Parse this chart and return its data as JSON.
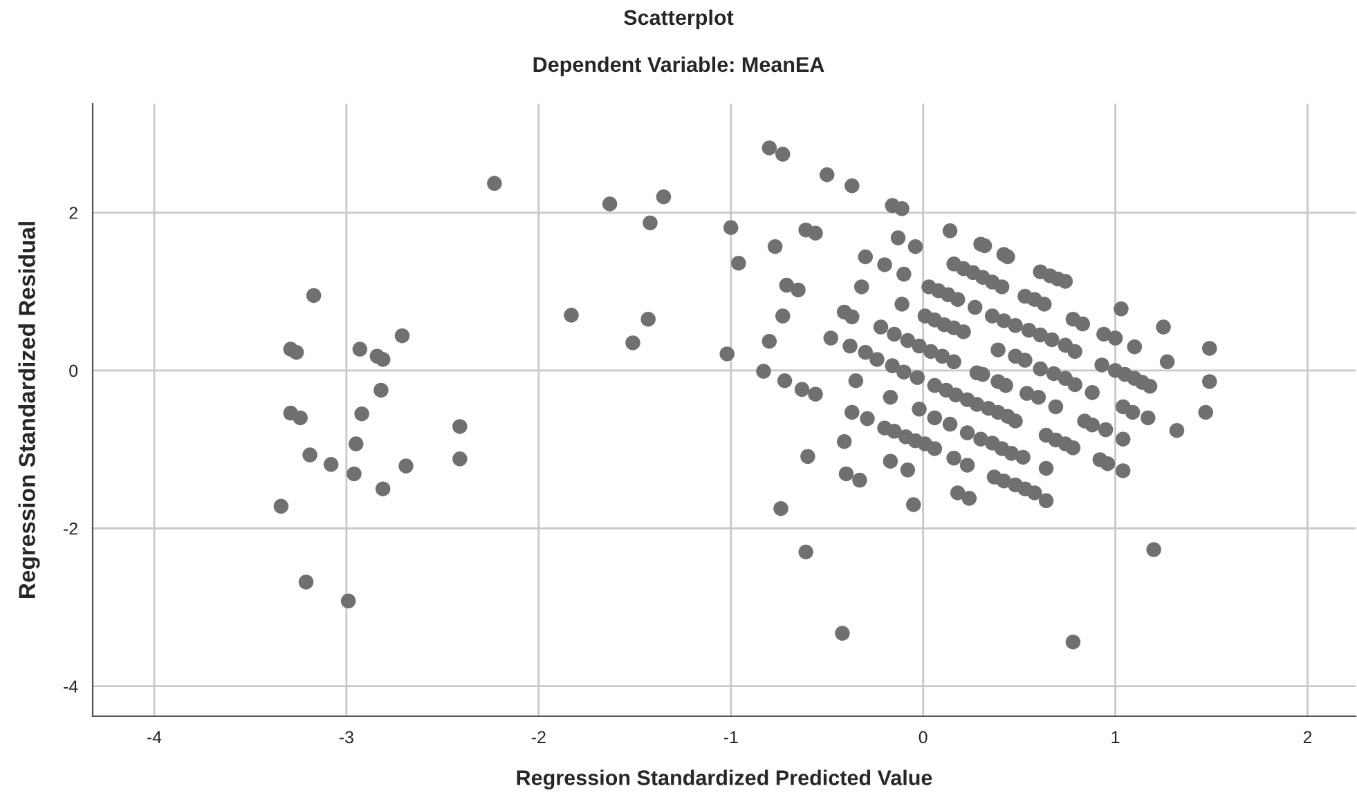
{
  "chart_data": {
    "type": "scatter",
    "title": "Scatterplot",
    "subtitle": "Dependent Variable: MeanEA",
    "xlabel": "Regression Standardized Predicted Value",
    "ylabel": "Regression Standardized Residual",
    "xlim": [
      -4.32,
      2.25
    ],
    "ylim": [
      -4.38,
      3.38
    ],
    "xticks": [
      -4,
      -3,
      -2,
      -1,
      0,
      1,
      2
    ],
    "yticks": [
      -4,
      -2,
      0,
      2
    ],
    "grid": true,
    "marker": "circle",
    "series": [
      {
        "color": "#707070",
        "x": [
          -2.23,
          -3.17,
          -3.29,
          -3.26,
          -2.93,
          -2.71,
          -2.84,
          -2.81,
          -2.82,
          -3.29,
          -3.24,
          -2.92,
          -2.95,
          -3.19,
          -3.08,
          -2.96,
          -2.69,
          -2.81,
          -2.41,
          -2.41,
          -3.34,
          -3.21,
          -2.99,
          -1.63,
          -1.35,
          -1.42,
          -1.83,
          -1.43,
          -1.51,
          -0.8,
          -0.73,
          -0.5,
          -0.37,
          -0.16,
          -0.11,
          -1.0,
          -0.96,
          -0.77,
          -0.61,
          -0.56,
          -0.13,
          -0.04,
          0.14,
          -0.3,
          -0.2,
          -0.1,
          -0.32,
          -0.71,
          -0.65,
          -0.73,
          -0.8,
          -1.02,
          -0.83,
          -0.72,
          -0.63,
          -0.56,
          -0.6,
          -0.74,
          -0.61,
          -0.42,
          0.78,
          1.2,
          -0.11,
          -0.41,
          -0.37,
          -0.48,
          -0.38,
          -0.3,
          -0.22,
          -0.24,
          -0.16,
          -0.35,
          -0.17,
          -0.37,
          -0.29,
          -0.41,
          -0.17,
          -0.08,
          -0.4,
          -0.33,
          -0.05,
          -0.02,
          0.06,
          0.14,
          0.23,
          0.16,
          0.23,
          0.18,
          0.24,
          0.52,
          0.64,
          0.64,
          0.37,
          0.42,
          0.48,
          0.53,
          0.58,
          -0.2,
          -0.15,
          -0.09,
          -0.04,
          0.01,
          0.06,
          0.3,
          0.36,
          0.41,
          0.46,
          0.64,
          0.69,
          0.74,
          0.78,
          0.92,
          0.96,
          1.04,
          1.04,
          0.84,
          0.88,
          0.95,
          1.04,
          1.09,
          1.17,
          1.32,
          1.47,
          1.49,
          1.49,
          1.27,
          1.25,
          1.1,
          1.03,
          0.94,
          1.0,
          0.93,
          1.0,
          1.05,
          1.1,
          1.14,
          1.18,
          0.88,
          0.78,
          0.83,
          0.61,
          0.66,
          0.7,
          0.74,
          0.3,
          0.32,
          0.42,
          0.44,
          0.16,
          0.21,
          0.26,
          0.31,
          0.36,
          0.41,
          0.53,
          0.58,
          0.63,
          0.03,
          0.08,
          0.13,
          0.18,
          0.27,
          0.36,
          0.42,
          0.48,
          0.55,
          0.61,
          0.67,
          0.74,
          0.79,
          0.01,
          0.06,
          0.11,
          0.16,
          0.21,
          -0.15,
          -0.08,
          -0.02,
          0.04,
          0.1,
          0.16,
          0.39,
          0.48,
          0.53,
          0.61,
          0.68,
          0.74,
          0.79,
          -0.1,
          -0.03,
          0.28,
          0.31,
          0.39,
          0.43,
          0.54,
          0.6,
          0.69,
          0.06,
          0.12,
          0.17,
          0.23,
          0.28,
          0.34,
          0.39,
          0.44,
          0.48
        ],
        "values": [
          2.37,
          0.95,
          0.27,
          0.23,
          0.27,
          0.44,
          0.18,
          0.14,
          -0.25,
          -0.54,
          -0.6,
          -0.55,
          -0.93,
          -1.07,
          -1.19,
          -1.31,
          -1.21,
          -1.5,
          -0.71,
          -1.12,
          -1.72,
          -2.68,
          -2.92,
          2.11,
          2.2,
          1.87,
          0.7,
          0.65,
          0.35,
          2.82,
          2.74,
          2.48,
          2.34,
          2.09,
          2.05,
          1.81,
          1.36,
          1.57,
          1.78,
          1.74,
          1.68,
          1.57,
          1.77,
          1.44,
          1.34,
          1.22,
          1.06,
          1.08,
          1.02,
          0.69,
          0.37,
          0.21,
          -0.01,
          -0.13,
          -0.24,
          -0.3,
          -1.09,
          -1.75,
          -2.3,
          -3.33,
          -3.44,
          -2.27,
          0.84,
          0.74,
          0.68,
          0.41,
          0.31,
          0.23,
          0.55,
          0.14,
          0.06,
          -0.13,
          -0.34,
          -0.53,
          -0.61,
          -0.9,
          -1.15,
          -1.26,
          -1.31,
          -1.39,
          -1.7,
          -0.49,
          -0.6,
          -0.68,
          -0.79,
          -1.11,
          -1.2,
          -1.55,
          -1.62,
          -1.1,
          -1.24,
          -1.65,
          -1.35,
          -1.4,
          -1.45,
          -1.5,
          -1.55,
          -0.73,
          -0.77,
          -0.84,
          -0.89,
          -0.93,
          -0.99,
          -0.87,
          -0.92,
          -0.99,
          -1.05,
          -0.82,
          -0.88,
          -0.93,
          -0.98,
          -1.13,
          -1.18,
          -1.27,
          -0.87,
          -0.64,
          -0.69,
          -0.75,
          -0.46,
          -0.53,
          -0.6,
          -0.76,
          -0.53,
          -0.14,
          0.28,
          0.11,
          0.55,
          0.3,
          0.78,
          0.46,
          0.41,
          0.07,
          0.0,
          -0.05,
          -0.1,
          -0.15,
          -0.2,
          -0.28,
          0.65,
          0.59,
          1.25,
          1.2,
          1.16,
          1.13,
          1.6,
          1.58,
          1.47,
          1.44,
          1.35,
          1.29,
          1.24,
          1.18,
          1.12,
          1.06,
          0.94,
          0.9,
          0.84,
          1.06,
          1.01,
          0.96,
          0.9,
          0.8,
          0.69,
          0.63,
          0.57,
          0.51,
          0.45,
          0.39,
          0.32,
          0.24,
          0.69,
          0.64,
          0.58,
          0.54,
          0.49,
          0.46,
          0.38,
          0.31,
          0.24,
          0.18,
          0.11,
          0.26,
          0.18,
          0.13,
          0.02,
          -0.04,
          -0.1,
          -0.18,
          -0.02,
          -0.09,
          -0.03,
          -0.05,
          -0.14,
          -0.19,
          -0.29,
          -0.34,
          -0.46,
          -0.19,
          -0.25,
          -0.31,
          -0.37,
          -0.43,
          -0.48,
          -0.53,
          -0.58,
          -0.64
        ]
      }
    ]
  }
}
